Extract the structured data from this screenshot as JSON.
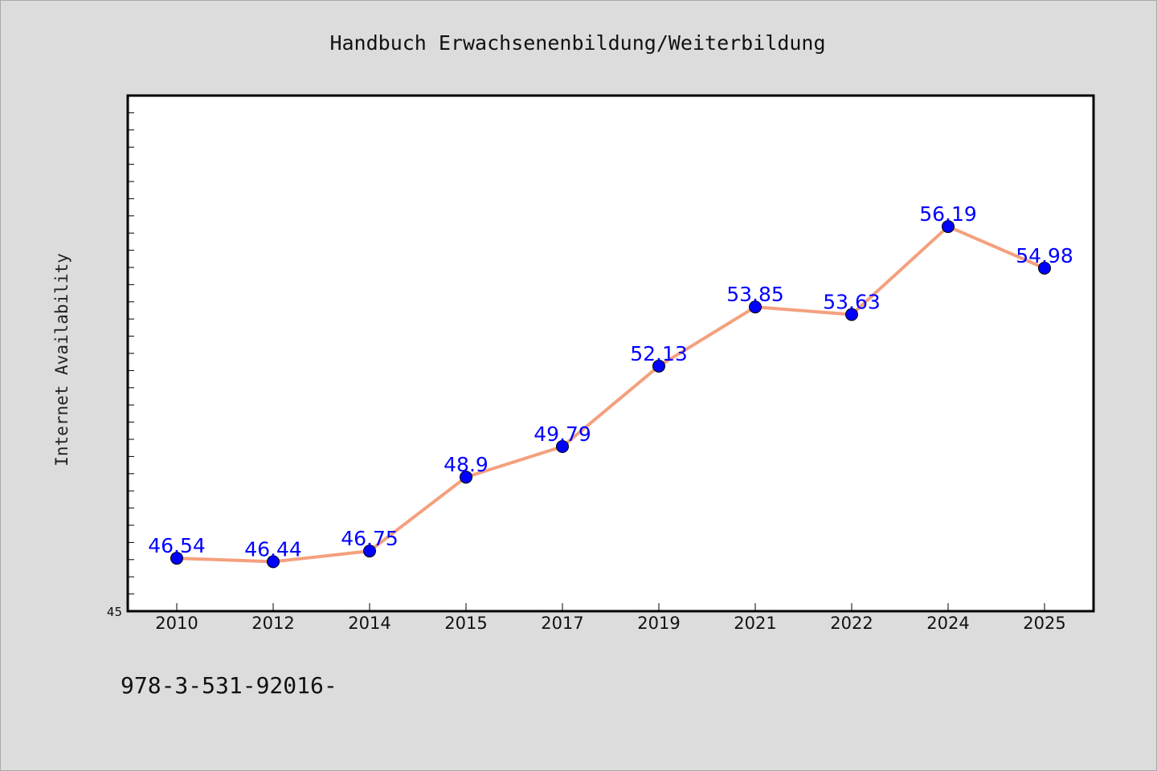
{
  "colors": {
    "background": "#dcdcdc",
    "plot_background": "#ffffff",
    "line": "#f4a07e",
    "marker": "#0000ff",
    "label": "#0000ff"
  },
  "footer_text": "978-3-531-92016-",
  "chart_data": {
    "type": "line",
    "title": "Handbuch Erwachsenenbildung/Weiterbildung",
    "xlabel": "",
    "ylabel": "Internet Availability",
    "categories": [
      "2010",
      "2012",
      "2014",
      "2015",
      "2017",
      "2019",
      "2021",
      "2022",
      "2024",
      "2025"
    ],
    "values": [
      46.54,
      46.44,
      46.75,
      48.9,
      49.79,
      52.13,
      53.85,
      53.63,
      56.19,
      54.98
    ],
    "value_labels": [
      "46.54",
      "46.44",
      "46.75",
      "48.9",
      "49.79",
      "52.13",
      "53.85",
      "53.63",
      "56.19",
      "54.98"
    ],
    "ylim": [
      45,
      60
    ],
    "y_tick_label": "45",
    "grid": false,
    "legend": "none"
  }
}
